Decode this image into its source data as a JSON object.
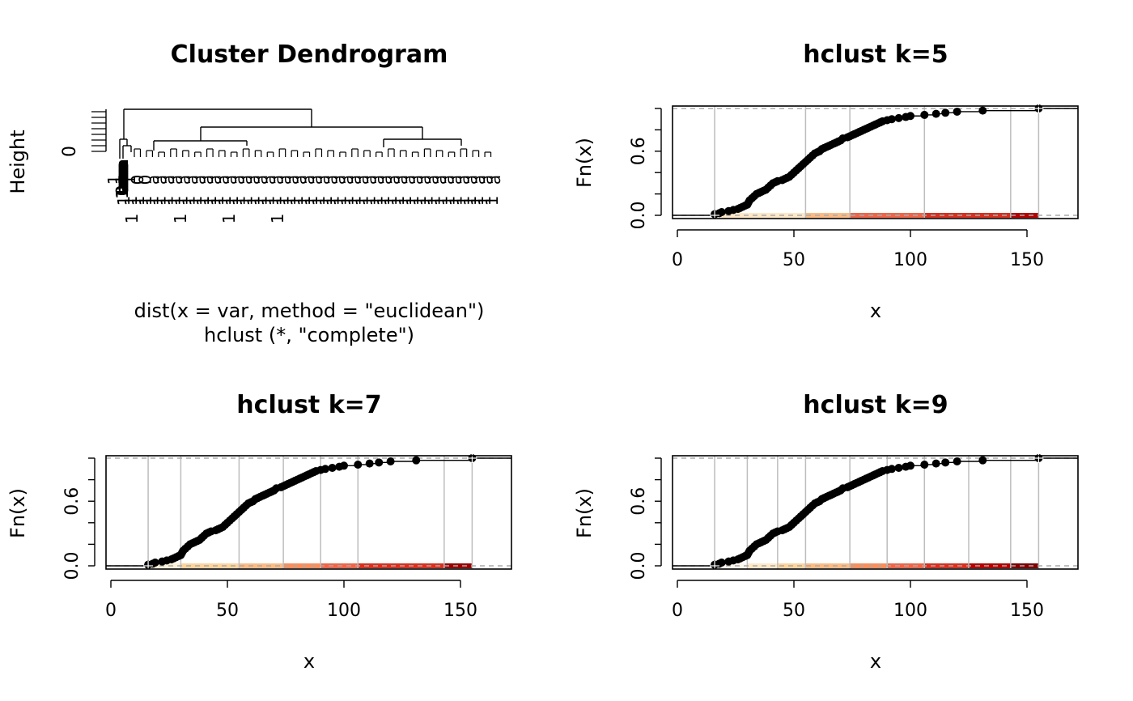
{
  "chart_data": [
    {
      "type": "dendrogram",
      "title": "Cluster Dendrogram",
      "ylabel": "Height",
      "y_tick_label": "0",
      "sub_line1": "dist(x = var, method = \"euclidean\")",
      "sub_line2": "hclust (*, \"complete\")"
    },
    {
      "type": "step",
      "title": "hclust k=5",
      "xlabel": "x",
      "ylabel": "Fn(x)",
      "xticks": [
        "0",
        "50",
        "100",
        "150"
      ],
      "yticks": [
        "0.0",
        "0.6"
      ],
      "xlim": [
        0,
        170
      ],
      "ylim": [
        0,
        1
      ],
      "breaks": [
        16,
        55,
        74,
        106,
        143,
        155
      ],
      "palette": [
        "#fee8c8",
        "#fdbb84",
        "#ef6548",
        "#d7301f",
        "#b30000"
      ],
      "grid": true
    },
    {
      "type": "step",
      "title": "hclust k=7",
      "xlabel": "x",
      "ylabel": "Fn(x)",
      "xticks": [
        "0",
        "50",
        "100",
        "150"
      ],
      "yticks": [
        "0.0",
        "0.6"
      ],
      "xlim": [
        0,
        170
      ],
      "ylim": [
        0,
        1
      ],
      "breaks": [
        16,
        30,
        55,
        74,
        90,
        106,
        143,
        155
      ],
      "palette": [
        "#fef0d9",
        "#fdd49e",
        "#fdbb84",
        "#fc8d59",
        "#ef6548",
        "#d7301f",
        "#990000"
      ],
      "grid": true
    },
    {
      "type": "step",
      "title": "hclust k=9",
      "xlabel": "x",
      "ylabel": "Fn(x)",
      "xticks": [
        "0",
        "50",
        "100",
        "150"
      ],
      "yticks": [
        "0.0",
        "0.6"
      ],
      "xlim": [
        0,
        170
      ],
      "ylim": [
        0,
        1
      ],
      "breaks": [
        16,
        30,
        43,
        55,
        74,
        90,
        106,
        125,
        143,
        155
      ],
      "palette": [
        "#fff7ec",
        "#fee8c8",
        "#fdd49e",
        "#fdbb84",
        "#fc8d59",
        "#ef6548",
        "#d7301f",
        "#b30000",
        "#7f0000"
      ],
      "grid": true
    }
  ],
  "ecdf_points": [
    [
      16,
      0.01
    ],
    [
      18,
      0.02
    ],
    [
      19,
      0.03
    ],
    [
      22,
      0.04
    ],
    [
      24,
      0.05
    ],
    [
      26,
      0.06
    ],
    [
      27,
      0.07
    ],
    [
      28,
      0.08
    ],
    [
      29,
      0.09
    ],
    [
      30,
      0.1
    ],
    [
      30.5,
      0.12
    ],
    [
      31,
      0.14
    ],
    [
      32,
      0.16
    ],
    [
      33,
      0.18
    ],
    [
      34,
      0.2
    ],
    [
      35,
      0.21
    ],
    [
      36,
      0.22
    ],
    [
      37,
      0.23
    ],
    [
      38,
      0.24
    ],
    [
      39,
      0.26
    ],
    [
      40,
      0.28
    ],
    [
      41,
      0.3
    ],
    [
      42,
      0.31
    ],
    [
      43,
      0.32
    ],
    [
      45,
      0.33
    ],
    [
      46,
      0.34
    ],
    [
      47,
      0.35
    ],
    [
      48,
      0.36
    ],
    [
      49,
      0.38
    ],
    [
      50,
      0.4
    ],
    [
      51,
      0.42
    ],
    [
      52,
      0.44
    ],
    [
      53,
      0.46
    ],
    [
      54,
      0.48
    ],
    [
      55,
      0.5
    ],
    [
      56,
      0.52
    ],
    [
      57,
      0.54
    ],
    [
      58,
      0.56
    ],
    [
      59,
      0.58
    ],
    [
      60,
      0.59
    ],
    [
      61,
      0.6
    ],
    [
      62,
      0.62
    ],
    [
      63,
      0.63
    ],
    [
      64,
      0.64
    ],
    [
      65,
      0.65
    ],
    [
      66,
      0.66
    ],
    [
      67,
      0.67
    ],
    [
      68,
      0.68
    ],
    [
      69,
      0.69
    ],
    [
      70,
      0.7
    ],
    [
      71,
      0.72
    ],
    [
      73,
      0.73
    ],
    [
      74,
      0.74
    ],
    [
      75,
      0.75
    ],
    [
      76,
      0.76
    ],
    [
      77,
      0.77
    ],
    [
      78,
      0.78
    ],
    [
      79,
      0.79
    ],
    [
      80,
      0.8
    ],
    [
      81,
      0.81
    ],
    [
      82,
      0.82
    ],
    [
      83,
      0.83
    ],
    [
      84,
      0.84
    ],
    [
      85,
      0.85
    ],
    [
      86,
      0.86
    ],
    [
      87,
      0.87
    ],
    [
      88,
      0.88
    ],
    [
      90,
      0.89
    ],
    [
      92,
      0.9
    ],
    [
      95,
      0.91
    ],
    [
      98,
      0.92
    ],
    [
      100,
      0.93
    ],
    [
      106,
      0.94
    ],
    [
      111,
      0.95
    ],
    [
      115,
      0.96
    ],
    [
      120,
      0.97
    ],
    [
      131,
      0.98
    ],
    [
      155,
      1.0
    ]
  ],
  "dendrogram": {
    "leaf_labels_row1": "11100aaaaaaaaaaaaaaaaaaaaaaaaaaaaaaaaaaaaaaaaaaaaa",
    "leaf_labels_row2": "1111111111111111111111111111111111111111111111111111",
    "leaf_labels_row3": "1111"
  }
}
